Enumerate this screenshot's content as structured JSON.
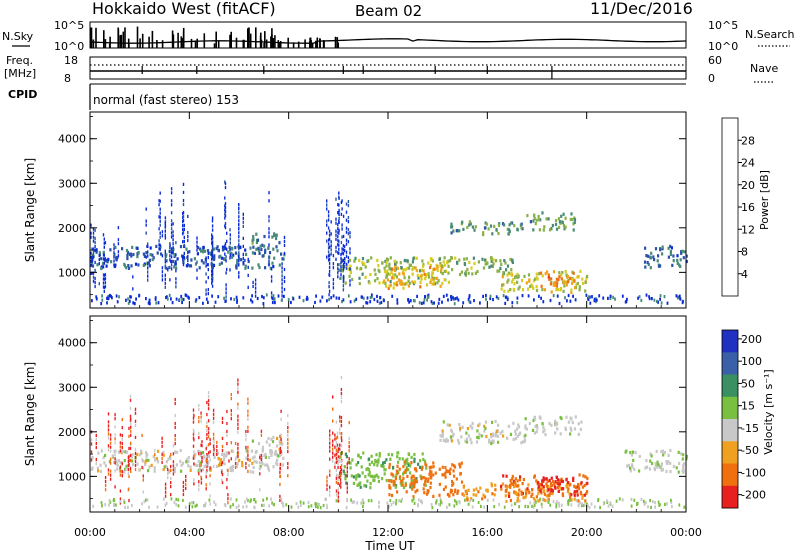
{
  "header": {
    "station": "Hokkaido West (fitACF)",
    "beam": "Beam 02",
    "date": "11/Dec/2016"
  },
  "mini_panels": {
    "nsky_label": "N.Sky",
    "nsky_ticks": [
      "10^5",
      "10^0"
    ],
    "nsearch_label": "N.Search",
    "nsearch_ticks": [
      "10^5",
      "10^0"
    ],
    "freq_label_line1": "Freq.",
    "freq_label_line2": "[MHz]",
    "freq_ticks": [
      "18",
      "8"
    ],
    "nave_label": "Nave",
    "nave_ticks": [
      "60",
      "0"
    ],
    "cpid_label": "CPID",
    "cpid_value": "normal (fast stereo) 153"
  },
  "colors": {
    "power_scale": [
      "#0b2bd8",
      "#2a52a8",
      "#4a8a78",
      "#8ab04a",
      "#d8cc20",
      "#f0a418",
      "#f07010",
      "#e82018"
    ],
    "velocity_scale": [
      "#2030c0",
      "#3a60a8",
      "#3a9060",
      "#7ac040",
      "#c8c8c8",
      "#f0a020",
      "#f07010",
      "#e82020"
    ]
  },
  "chart_data": [
    {
      "type": "heatmap",
      "panel": "power",
      "ylabel": "Slant Range [km]",
      "yticks": [
        "1000",
        "2000",
        "3000",
        "4000"
      ],
      "ylim": [
        200,
        4600
      ],
      "colorbar_label": "Power [dB]",
      "colorbar_ticks": [
        "4",
        "8",
        "12",
        "16",
        "20",
        "24",
        "28"
      ],
      "colorbar_range": [
        0,
        32
      ],
      "bands": [
        {
          "t0": 0.0,
          "t1": 7.8,
          "r0": 1050,
          "r1": 1550,
          "level": 0.18
        },
        {
          "t0": 6.5,
          "t1": 7.7,
          "r0": 1500,
          "r1": 1850,
          "level": 0.25
        },
        {
          "t0": 10.0,
          "t1": 14.5,
          "r0": 700,
          "r1": 1300,
          "level": 0.45
        },
        {
          "t0": 11.8,
          "t1": 14.2,
          "r0": 600,
          "r1": 1100,
          "level": 0.7
        },
        {
          "t0": 14.0,
          "t1": 17.0,
          "r0": 900,
          "r1": 1300,
          "level": 0.4
        },
        {
          "t0": 14.5,
          "t1": 17.5,
          "r0": 1800,
          "r1": 2100,
          "level": 0.3
        },
        {
          "t0": 16.5,
          "t1": 20.0,
          "r0": 500,
          "r1": 1000,
          "level": 0.55
        },
        {
          "t0": 18.0,
          "t1": 19.5,
          "r0": 650,
          "r1": 950,
          "level": 0.85
        },
        {
          "t0": 17.5,
          "t1": 19.5,
          "r0": 1900,
          "r1": 2300,
          "level": 0.35
        },
        {
          "t0": 22.3,
          "t1": 24.0,
          "r0": 1050,
          "r1": 1550,
          "level": 0.2
        }
      ]
    },
    {
      "type": "heatmap",
      "panel": "velocity",
      "ylabel": "Slant Range [km]",
      "yticks": [
        "1000",
        "2000",
        "3000",
        "4000"
      ],
      "ylim": [
        200,
        4600
      ],
      "xlabel": "Time UT",
      "xticks": [
        "00:00",
        "04:00",
        "08:00",
        "12:00",
        "16:00",
        "20:00",
        "00:00"
      ],
      "xlim": [
        0,
        24
      ],
      "colorbar_label": "Velocity [m s⁻¹]",
      "colorbar_ticks": [
        "-200",
        "-100",
        "-50",
        "-15",
        "15",
        "50",
        "100",
        "200"
      ],
      "colorbar_range": [
        -250,
        250
      ],
      "bands": [
        {
          "t0": 0.0,
          "t1": 7.8,
          "r0": 1050,
          "r1": 1550,
          "level": 0.0
        },
        {
          "t0": 6.5,
          "t1": 7.7,
          "r0": 1500,
          "r1": 1850,
          "level": 0.0
        },
        {
          "t0": 10.0,
          "t1": 13.5,
          "r0": 700,
          "r1": 1500,
          "level": 40
        },
        {
          "t0": 12.0,
          "t1": 15.0,
          "r0": 500,
          "r1": 1300,
          "level": -80
        },
        {
          "t0": 14.0,
          "t1": 17.5,
          "r0": 1700,
          "r1": 2200,
          "level": 0
        },
        {
          "t0": 15.0,
          "t1": 20.0,
          "r0": 400,
          "r1": 800,
          "level": -40
        },
        {
          "t0": 16.5,
          "t1": 20.0,
          "r0": 500,
          "r1": 1000,
          "level": -90
        },
        {
          "t0": 18.0,
          "t1": 19.5,
          "r0": 600,
          "r1": 950,
          "level": -130
        },
        {
          "t0": 17.5,
          "t1": 19.8,
          "r0": 1900,
          "r1": 2300,
          "level": 5
        },
        {
          "t0": 21.5,
          "t1": 24.0,
          "r0": 1050,
          "r1": 1550,
          "level": 10
        }
      ]
    }
  ]
}
